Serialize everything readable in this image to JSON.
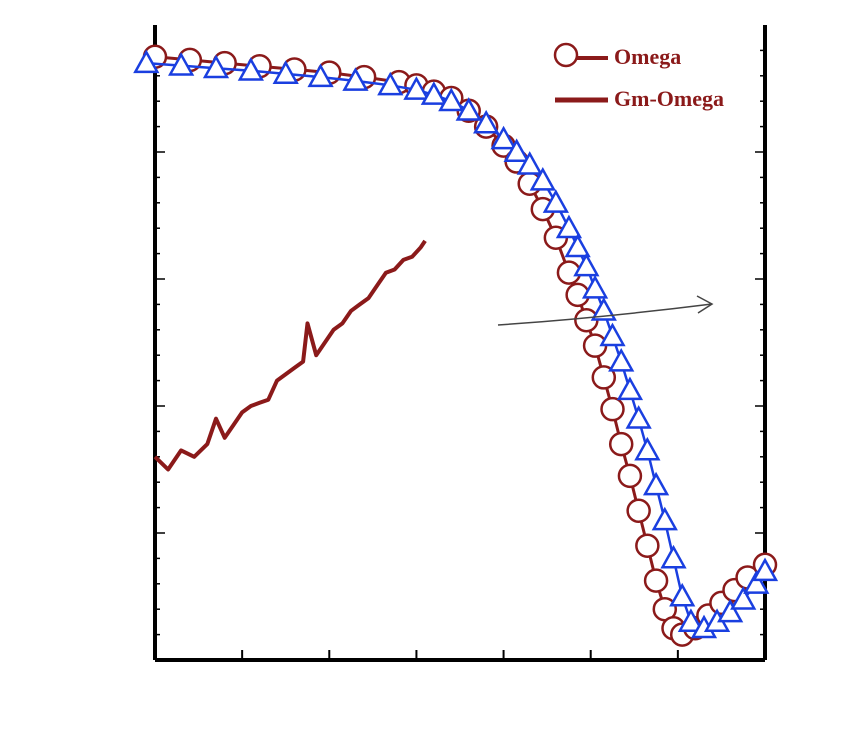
{
  "chart_data": {
    "type": "line",
    "title": "",
    "xlabel": "",
    "ylabel": "",
    "xlim": [
      0,
      7
    ],
    "ylim": [
      0,
      100
    ],
    "x_ticks": [
      1,
      2,
      3,
      4,
      5,
      6
    ],
    "grid": false,
    "legend_position": "top-right",
    "colors": {
      "omega": "#8b1a1a",
      "gm_omega": "#8b1a1a",
      "blue": "#1a3fe0",
      "arrow": "#444444",
      "axis": "#000000"
    },
    "series": [
      {
        "name": "Omega",
        "marker": "circle",
        "x": [
          0,
          0.4,
          0.8,
          1.2,
          1.6,
          2.0,
          2.4,
          2.8,
          3.0,
          3.2,
          3.4,
          3.6,
          3.8,
          4.0,
          4.15,
          4.3,
          4.45,
          4.6,
          4.75,
          4.85,
          4.95,
          5.05,
          5.15,
          5.25,
          5.35,
          5.45,
          5.55,
          5.65,
          5.75,
          5.85,
          5.95,
          6.05,
          6.2,
          6.35,
          6.5,
          6.65,
          6.8,
          7.0
        ],
        "y": [
          95,
          94.5,
          94,
          93.5,
          93,
          92.5,
          91.8,
          91,
          90.5,
          89.5,
          88.5,
          86.5,
          84,
          81,
          78.5,
          75,
          71,
          66.5,
          61,
          57.5,
          53.5,
          49.5,
          44.5,
          39.5,
          34,
          29,
          23.5,
          18,
          12.5,
          8,
          5,
          4,
          5,
          7,
          9,
          11,
          13,
          15
        ]
      },
      {
        "name": "",
        "marker": "triangle",
        "x": [
          -0.1,
          0.3,
          0.7,
          1.1,
          1.5,
          1.9,
          2.3,
          2.7,
          3.0,
          3.2,
          3.4,
          3.6,
          3.8,
          4.0,
          4.15,
          4.3,
          4.45,
          4.6,
          4.75,
          4.85,
          4.95,
          5.05,
          5.15,
          5.25,
          5.35,
          5.45,
          5.55,
          5.65,
          5.75,
          5.85,
          5.95,
          6.05,
          6.15,
          6.3,
          6.45,
          6.6,
          6.75,
          6.9,
          7.0
        ],
        "y": [
          94,
          93.6,
          93.2,
          92.8,
          92.3,
          91.8,
          91.2,
          90.5,
          89.8,
          89,
          88,
          86.5,
          84.5,
          82,
          80,
          78,
          75.5,
          72,
          68,
          65,
          62,
          58.5,
          55,
          51,
          47,
          42.5,
          38,
          33,
          27.5,
          22,
          16,
          10,
          6,
          5,
          6,
          7.5,
          9.5,
          12,
          14
        ]
      },
      {
        "name": "Gm-Omega",
        "marker": "none",
        "x": [
          0,
          0.15,
          0.3,
          0.45,
          0.6,
          0.7,
          0.8,
          0.9,
          1.0,
          1.1,
          1.2,
          1.3,
          1.4,
          1.5,
          1.6,
          1.7,
          1.75,
          1.85,
          1.95,
          2.05,
          2.15,
          2.25,
          2.35,
          2.45,
          2.55,
          2.65,
          2.75,
          2.85,
          2.95,
          3.05,
          3.1
        ],
        "y": [
          32,
          30,
          33,
          32,
          34,
          38,
          35,
          37,
          39,
          40,
          40.5,
          41,
          44,
          45,
          46,
          47,
          53,
          48,
          50,
          52,
          53,
          55,
          56,
          57,
          59,
          61,
          61.5,
          63,
          63.5,
          65,
          66
        ]
      }
    ]
  }
}
